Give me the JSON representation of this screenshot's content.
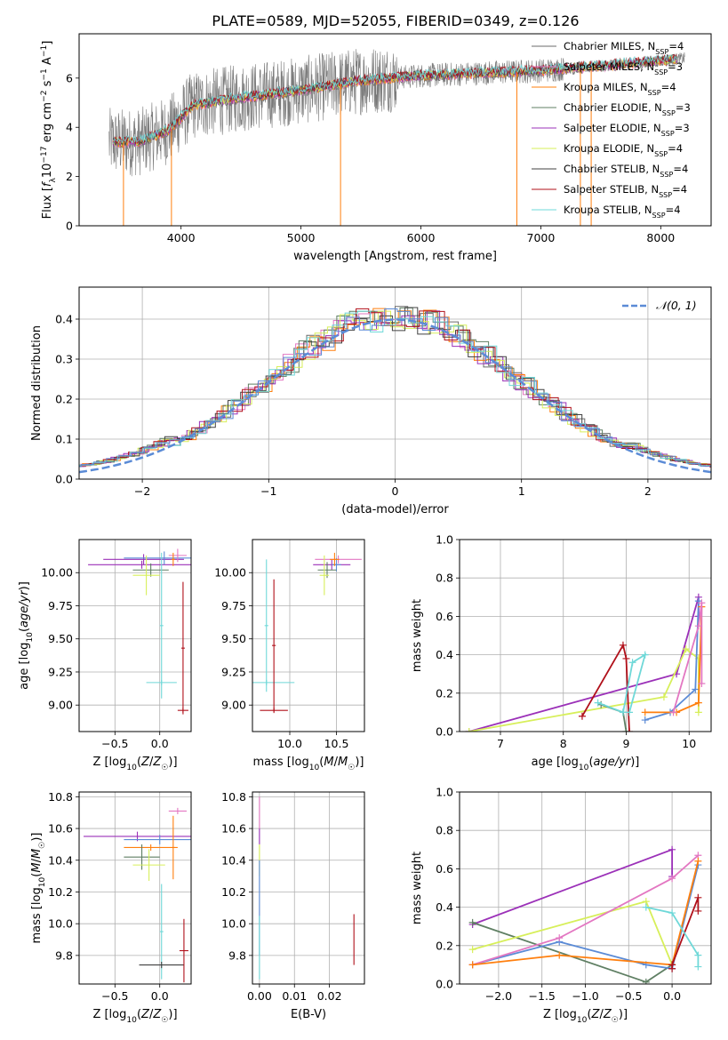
{
  "figure_title": "PLATE=0589, MJD=52055, FIBERID=0349, z=0.126",
  "colors": {
    "Chabrier MILES": "#6b6b6b",
    "Salpeter MILES": "#e377c2",
    "Kroupa MILES": "#ff7f0e",
    "Chabrier ELODIE": "#5f7f63",
    "Salpeter ELODIE": "#9b30b8",
    "Kroupa ELODIE": "#d7ef5a",
    "Chabrier STELIB": "#404040",
    "Salpeter STELIB": "#b0101a",
    "Kroupa STELIB": "#6fd8d8",
    "extra_blue": "#5b8bd6",
    "grid": "#b0b0b0",
    "normal_curve": "#5b8bd6"
  },
  "chart_data": [
    {
      "id": "spectrum",
      "type": "line",
      "title": "PLATE=0589, MJD=52055, FIBERID=0349, z=0.126",
      "xlabel": "wavelength [Angstrom, rest frame]",
      "ylabel": "Flux [f_λ 10^-17 erg cm^-2 s^-1 A^-1]",
      "xlim": [
        3150,
        8420
      ],
      "ylim": [
        0,
        7.8
      ],
      "xticks": [
        4000,
        5000,
        6000,
        7000,
        8000
      ],
      "yticks": [
        0,
        2,
        4,
        6
      ],
      "grid": false,
      "legend_position": "right",
      "legend": [
        {
          "name": "Chabrier MILES, N_SSP=4",
          "color": "#6b6b6b"
        },
        {
          "name": "Salpeter MILES, N_SSP=3",
          "color": "#e377c2"
        },
        {
          "name": "Kroupa MILES, N_SSP=4",
          "color": "#ff7f0e"
        },
        {
          "name": "Chabrier ELODIE, N_SSP=3",
          "color": "#5f7f63"
        },
        {
          "name": "Salpeter ELODIE, N_SSP=3",
          "color": "#9b30b8"
        },
        {
          "name": "Kroupa ELODIE, N_SSP=4",
          "color": "#d7ef5a"
        },
        {
          "name": "Chabrier STELIB, N_SSP=4",
          "color": "#404040"
        },
        {
          "name": "Salpeter STELIB, N_SSP=4",
          "color": "#b0101a"
        },
        {
          "name": "Kroupa STELIB, N_SSP=4",
          "color": "#6fd8d8"
        }
      ],
      "data_wavelength_range": [
        3400,
        8200
      ],
      "continuum_anchors": [
        [
          3400,
          3.4
        ],
        [
          3650,
          3.4
        ],
        [
          3900,
          3.9
        ],
        [
          4100,
          4.9
        ],
        [
          4500,
          5.2
        ],
        [
          5000,
          5.5
        ],
        [
          5500,
          5.9
        ],
        [
          6000,
          6.1
        ],
        [
          6500,
          6.2
        ],
        [
          7000,
          6.3
        ],
        [
          7500,
          6.5
        ],
        [
          8200,
          6.8
        ]
      ],
      "absorption_spikes": [
        [
          3520,
          0.0
        ],
        [
          3920,
          0.0
        ],
        [
          5330,
          0.0
        ],
        [
          6800,
          0.0
        ],
        [
          7330,
          0.0
        ],
        [
          7420,
          0.0
        ]
      ]
    },
    {
      "id": "residuals",
      "type": "step-histogram",
      "xlabel": "(data-model)/error",
      "ylabel": "Normed distribution",
      "xlim": [
        -2.5,
        2.5
      ],
      "ylim": [
        0,
        0.48
      ],
      "xticks": [
        -2,
        -1,
        0,
        1,
        2
      ],
      "yticks": [
        0.0,
        0.1,
        0.2,
        0.3,
        0.4
      ],
      "grid": true,
      "legend_position": "top-right",
      "legend": [
        {
          "name": "𝒩(0, 1)",
          "style": "dashed",
          "color": "#5b8bd6"
        }
      ],
      "bin_width": 0.1,
      "reference_curve": "normal(0,1)"
    },
    {
      "id": "age_vs_Z",
      "type": "errorbar",
      "xlabel": "Z [log10(Z/Z☉)]",
      "ylabel": "age  [log10(age/yr)]",
      "xlim": [
        -0.9,
        0.35
      ],
      "ylim": [
        8.8,
        10.25
      ],
      "xticks": [
        -0.5,
        0.0
      ],
      "yticks": [
        9.0,
        9.25,
        9.5,
        9.75,
        10.0
      ],
      "grid": true,
      "points": [
        {
          "x": -0.18,
          "y": 10.1,
          "xerr": 0.45,
          "yerr": 0.04,
          "color": "#9b30b8"
        },
        {
          "x": -0.2,
          "y": 10.06,
          "xerr": 0.6,
          "yerr": 0.03,
          "color": "#9b30b8"
        },
        {
          "x": 0.05,
          "y": 10.11,
          "xerr": 0.45,
          "yerr": 0.05,
          "color": "#5b8bd6"
        },
        {
          "x": -0.1,
          "y": 10.02,
          "xerr": 0.2,
          "yerr": 0.05,
          "color": "#5f7f63"
        },
        {
          "x": -0.15,
          "y": 9.98,
          "xerr": 0.15,
          "yerr": 0.15,
          "color": "#d7ef5a"
        },
        {
          "x": 0.2,
          "y": 10.13,
          "xerr": 0.1,
          "yerr": 0.05,
          "color": "#e377c2"
        },
        {
          "x": 0.15,
          "y": 10.1,
          "xerr": 0.02,
          "yerr": 0.05,
          "color": "#ff7f0e"
        },
        {
          "x": 0.02,
          "y": 9.6,
          "xerr": 0.02,
          "yerr": 0.55,
          "color": "#6fd8d8"
        },
        {
          "x": 0.02,
          "y": 9.17,
          "xerr": 0.17,
          "yerr": 0.02,
          "color": "#6fd8d8"
        },
        {
          "x": 0.26,
          "y": 9.43,
          "xerr": 0.02,
          "yerr": 0.5,
          "color": "#b0101a"
        },
        {
          "x": 0.26,
          "y": 8.96,
          "xerr": 0.06,
          "yerr": 0.02,
          "color": "#b0101a"
        }
      ]
    },
    {
      "id": "age_vs_mass",
      "type": "errorbar",
      "xlabel": "mass [log10(M/M☉)]",
      "ylabel": "",
      "xlim": [
        9.6,
        10.8
      ],
      "ylim": [
        8.8,
        10.25
      ],
      "xticks": [
        10.0,
        10.5
      ],
      "yticks": [
        9.0,
        9.25,
        9.5,
        9.75,
        10.0
      ],
      "grid": true,
      "points": [
        {
          "x": 10.52,
          "y": 10.1,
          "xerr": 0.25,
          "yerr": 0.03,
          "color": "#e377c2"
        },
        {
          "x": 10.45,
          "y": 10.06,
          "xerr": 0.2,
          "yerr": 0.04,
          "color": "#9b30b8"
        },
        {
          "x": 10.5,
          "y": 10.06,
          "xerr": 0.05,
          "yerr": 0.05,
          "color": "#5b8bd6"
        },
        {
          "x": 10.4,
          "y": 10.02,
          "xerr": 0.1,
          "yerr": 0.06,
          "color": "#5f7f63"
        },
        {
          "x": 10.37,
          "y": 9.98,
          "xerr": 0.05,
          "yerr": 0.15,
          "color": "#d7ef5a"
        },
        {
          "x": 10.48,
          "y": 10.1,
          "xerr": 0.05,
          "yerr": 0.05,
          "color": "#ff7f0e"
        },
        {
          "x": 9.75,
          "y": 9.6,
          "xerr": 0.02,
          "yerr": 0.5,
          "color": "#6fd8d8"
        },
        {
          "x": 9.75,
          "y": 9.17,
          "xerr": 0.3,
          "yerr": 0.02,
          "color": "#6fd8d8"
        },
        {
          "x": 9.83,
          "y": 9.45,
          "xerr": 0.02,
          "yerr": 0.5,
          "color": "#b0101a"
        },
        {
          "x": 9.83,
          "y": 8.96,
          "xerr": 0.15,
          "yerr": 0.02,
          "color": "#b0101a"
        }
      ]
    },
    {
      "id": "mass_weight_vs_age",
      "type": "line",
      "xlabel": "age  [log10(age/yr)]",
      "ylabel": "mass weight",
      "xlim": [
        6.35,
        10.35
      ],
      "ylim": [
        0,
        1.0
      ],
      "xticks": [
        7,
        8,
        9,
        10
      ],
      "yticks": [
        0.0,
        0.2,
        0.4,
        0.6,
        0.8,
        1.0
      ],
      "grid": true,
      "series": [
        {
          "color": "#9b30b8",
          "x": [
            6.5,
            9.8,
            10.15,
            10.15
          ],
          "y": [
            0.0,
            0.3,
            0.7,
            0.6
          ]
        },
        {
          "color": "#d7ef5a",
          "x": [
            6.5,
            9.6,
            9.95,
            10.15,
            10.15
          ],
          "y": [
            0.0,
            0.18,
            0.43,
            0.38,
            0.1
          ]
        },
        {
          "color": "#b0101a",
          "x": [
            8.3,
            8.95,
            9.0,
            9.05
          ],
          "y": [
            0.08,
            0.45,
            0.38,
            0.0
          ]
        },
        {
          "color": "#5f7f63",
          "x": [
            8.6,
            8.95,
            9.0
          ],
          "y": [
            0.14,
            0.1,
            0.0
          ]
        },
        {
          "color": "#6fd8d8",
          "x": [
            8.55,
            8.95,
            9.1,
            9.3,
            9.05
          ],
          "y": [
            0.15,
            0.1,
            0.36,
            0.4,
            0.1
          ]
        },
        {
          "color": "#5b8bd6",
          "x": [
            9.3,
            9.7,
            10.1,
            10.15
          ],
          "y": [
            0.06,
            0.1,
            0.22,
            0.68
          ]
        },
        {
          "color": "#ff7f0e",
          "x": [
            9.3,
            9.8,
            10.15,
            10.2
          ],
          "y": [
            0.1,
            0.1,
            0.15,
            0.65
          ]
        },
        {
          "color": "#e377c2",
          "x": [
            9.75,
            10.15,
            10.2,
            10.2
          ],
          "y": [
            0.1,
            0.55,
            0.67,
            0.25
          ]
        }
      ]
    },
    {
      "id": "mass_vs_Z",
      "type": "errorbar",
      "xlabel": "Z [log10(Z/Z☉)]",
      "ylabel": "mass [log10(M/M☉)]",
      "xlim": [
        -0.9,
        0.35
      ],
      "ylim": [
        9.62,
        10.83
      ],
      "xticks": [
        -0.5,
        0.0
      ],
      "yticks": [
        9.8,
        10.0,
        10.2,
        10.4,
        10.6,
        10.8
      ],
      "grid": true,
      "points": [
        {
          "x": -0.25,
          "y": 10.55,
          "xerr": 0.6,
          "yerr": 0.03,
          "color": "#9b30b8"
        },
        {
          "x": 0.0,
          "y": 10.53,
          "xerr": 0.4,
          "yerr": 0.03,
          "color": "#5b8bd6"
        },
        {
          "x": -0.1,
          "y": 10.48,
          "xerr": 0.3,
          "yerr": 0.02,
          "color": "#ff7f0e"
        },
        {
          "x": 0.2,
          "y": 10.71,
          "xerr": 0.1,
          "yerr": 0.02,
          "color": "#e377c2"
        },
        {
          "x": -0.2,
          "y": 10.42,
          "xerr": 0.2,
          "yerr": 0.08,
          "color": "#5f7f63"
        },
        {
          "x": -0.12,
          "y": 10.37,
          "xerr": 0.18,
          "yerr": 0.1,
          "color": "#d7ef5a"
        },
        {
          "x": 0.15,
          "y": 10.48,
          "xerr": 0.02,
          "yerr": 0.2,
          "color": "#ff7f0e"
        },
        {
          "x": 0.02,
          "y": 9.95,
          "xerr": 0.02,
          "yerr": 0.3,
          "color": "#6fd8d8"
        },
        {
          "x": 0.02,
          "y": 9.74,
          "xerr": 0.25,
          "yerr": 0.02,
          "color": "#404040"
        },
        {
          "x": 0.27,
          "y": 9.83,
          "xerr": 0.05,
          "yerr": 0.2,
          "color": "#b0101a"
        }
      ]
    },
    {
      "id": "mass_vs_EBV",
      "type": "errorbar",
      "xlabel": "E(B-V)",
      "ylabel": "",
      "xlim": [
        -0.002,
        0.03
      ],
      "ylim": [
        9.62,
        10.83
      ],
      "xticks": [
        0.0,
        0.01,
        0.02
      ],
      "yticks": [
        9.8,
        10.0,
        10.2,
        10.4,
        10.6,
        10.8
      ],
      "grid": true,
      "points": [
        {
          "x": 0.0,
          "y": 10.7,
          "xerr": 0,
          "yerr": 0.1,
          "color": "#e377c2"
        },
        {
          "x": 0.0,
          "y": 10.55,
          "xerr": 0,
          "yerr": 0.05,
          "color": "#9b30b8"
        },
        {
          "x": 0.0,
          "y": 10.4,
          "xerr": 0,
          "yerr": 0.1,
          "color": "#d7ef5a"
        },
        {
          "x": 0.0,
          "y": 10.1,
          "xerr": 0,
          "yerr": 0.3,
          "color": "#5b8bd6"
        },
        {
          "x": 0.0,
          "y": 9.85,
          "xerr": 0,
          "yerr": 0.2,
          "color": "#6fd8d8"
        },
        {
          "x": 0.027,
          "y": 9.9,
          "xerr": 0,
          "yerr": 0.16,
          "color": "#b0101a"
        }
      ]
    },
    {
      "id": "mass_weight_vs_Z",
      "type": "line",
      "xlabel": "Z [log10(Z/Z☉)]",
      "ylabel": "mass weight",
      "xlim": [
        -2.45,
        0.45
      ],
      "ylim": [
        0,
        1.0
      ],
      "xticks": [
        -2.0,
        -1.5,
        -1.0,
        -0.5,
        0.0
      ],
      "yticks": [
        0.0,
        0.2,
        0.4,
        0.6,
        0.8,
        1.0
      ],
      "grid": true,
      "series": [
        {
          "color": "#9b30b8",
          "x": [
            -2.3,
            0.0,
            0.0
          ],
          "y": [
            0.31,
            0.7,
            0.56
          ]
        },
        {
          "color": "#5f7f63",
          "x": [
            -2.3,
            -0.3,
            0.0
          ],
          "y": [
            0.32,
            0.01,
            0.1
          ]
        },
        {
          "color": "#d7ef5a",
          "x": [
            -2.3,
            -0.3,
            0.0
          ],
          "y": [
            0.18,
            0.43,
            0.1
          ]
        },
        {
          "color": "#5b8bd6",
          "x": [
            -2.3,
            -1.3,
            -0.3,
            0.0,
            0.3
          ],
          "y": [
            0.1,
            0.22,
            0.1,
            0.08,
            0.62
          ]
        },
        {
          "color": "#e377c2",
          "x": [
            -2.3,
            -1.3,
            0.0,
            0.3
          ],
          "y": [
            0.1,
            0.24,
            0.55,
            0.67
          ]
        },
        {
          "color": "#ff7f0e",
          "x": [
            -2.3,
            -1.3,
            0.0,
            0.3
          ],
          "y": [
            0.1,
            0.15,
            0.1,
            0.64
          ]
        },
        {
          "color": "#b0101a",
          "x": [
            0.0,
            0.0,
            0.3,
            0.3
          ],
          "y": [
            0.08,
            0.1,
            0.45,
            0.38
          ]
        },
        {
          "color": "#6fd8d8",
          "x": [
            -0.3,
            0.0,
            0.3,
            0.3
          ],
          "y": [
            0.4,
            0.37,
            0.15,
            0.09
          ]
        }
      ]
    }
  ]
}
